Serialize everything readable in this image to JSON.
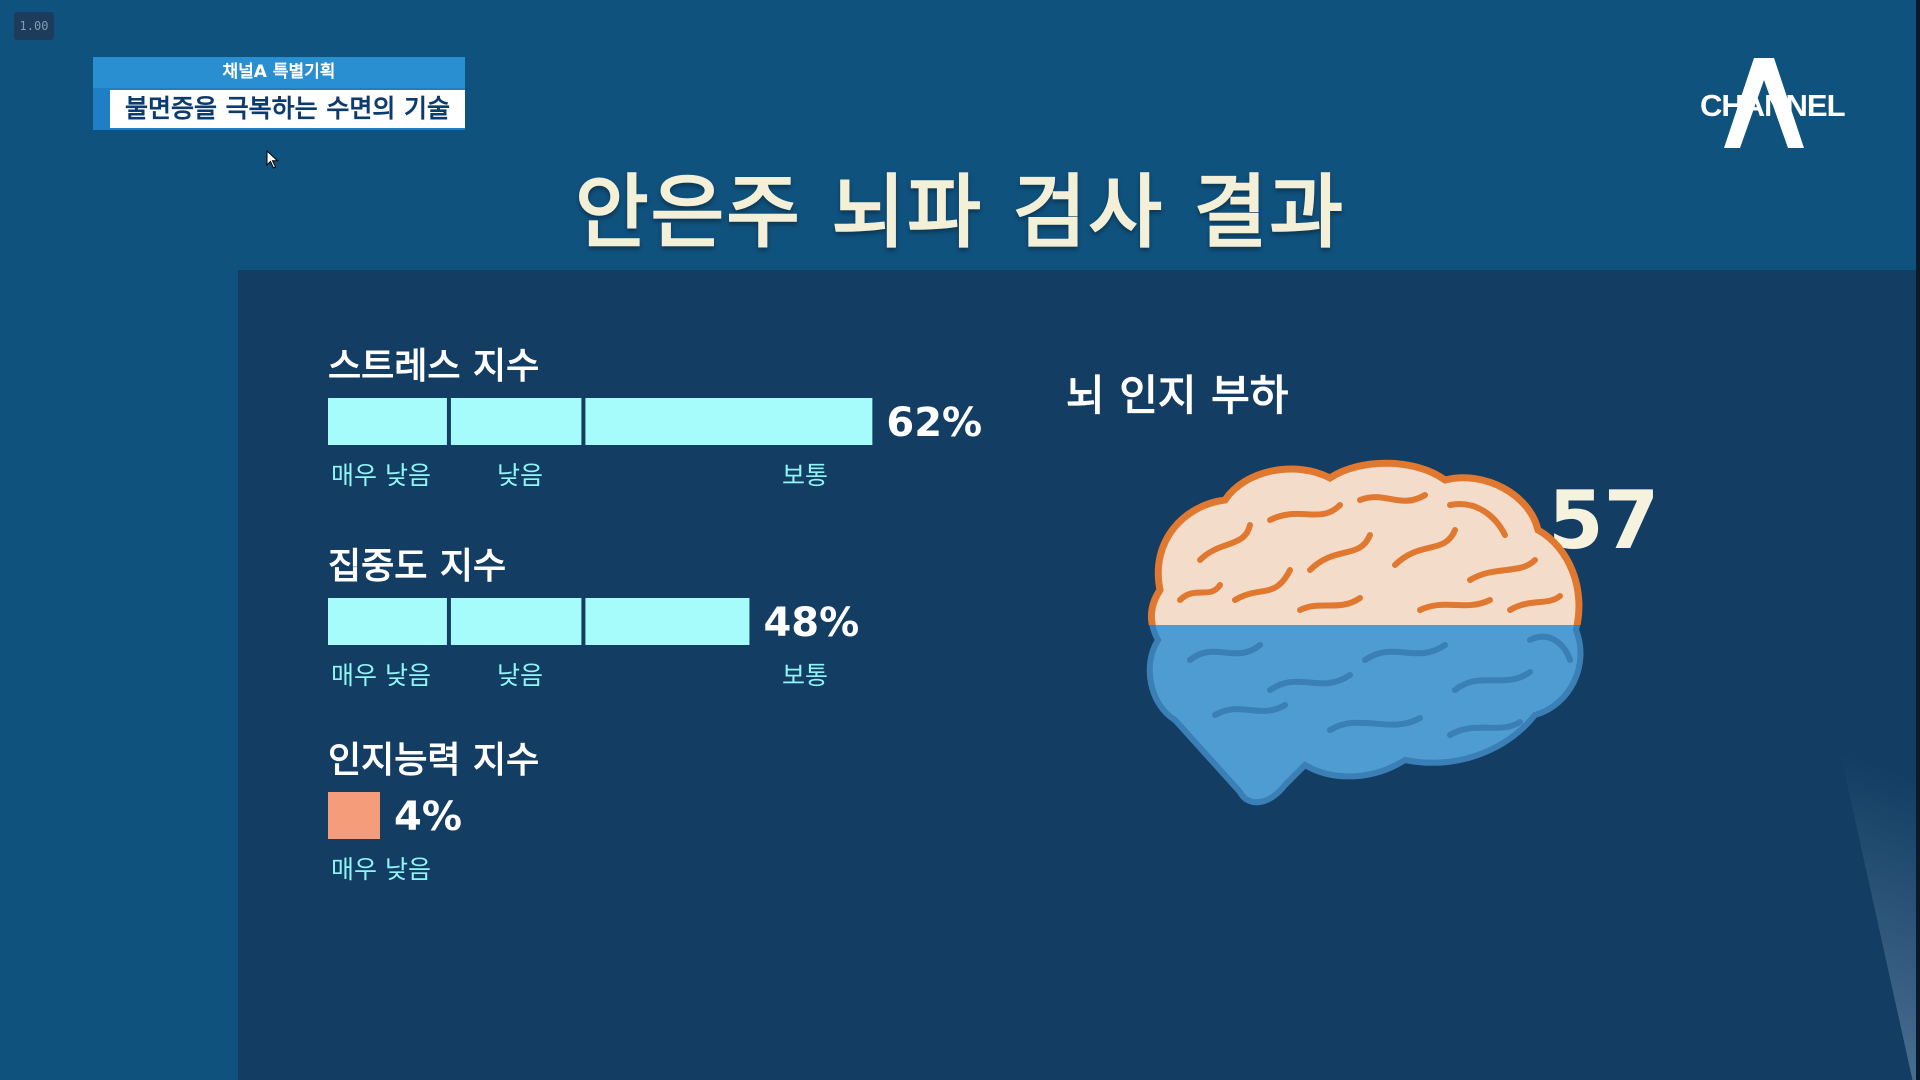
{
  "header": {
    "program_kicker": "채널A 특별기획",
    "program_title": "불면증을 극복하는 수면의 기술",
    "zoom_badge": "1.00",
    "logo_text": "CHANNEL",
    "main_title": "안은주 뇌파 검사 결과"
  },
  "colors": {
    "bar_fill": "#a6fcfb",
    "low_bar_fill": "#f59c7b",
    "label_color": "#8ff5f5",
    "brain_top": "#f4dccb",
    "brain_outline": "#e0792f",
    "brain_bottom": "#4f9cd3",
    "background": "#10527e"
  },
  "chart_data": [
    {
      "type": "bar",
      "orientation": "horizontal",
      "series": [
        {
          "name": "스트레스 지수",
          "value": 62,
          "value_label": "62%",
          "levels": [
            "매우 낮음",
            "낮음",
            "보통"
          ],
          "color": "#a6fcfb"
        },
        {
          "name": "집중도 지수",
          "value": 48,
          "value_label": "48%",
          "levels": [
            "매우 낮음",
            "낮음",
            "보통"
          ],
          "color": "#a6fcfb"
        },
        {
          "name": "인지능력 지수",
          "value": 4,
          "value_label": "4%",
          "levels": [
            "매우 낮음"
          ],
          "color": "#f59c7b"
        }
      ],
      "xlim": [
        0,
        100
      ],
      "grid": false
    },
    {
      "type": "gauge",
      "title": "뇌 인지 부하",
      "value": 57,
      "value_label": "57",
      "range": [
        0,
        100
      ],
      "icon": "brain-icon"
    }
  ]
}
